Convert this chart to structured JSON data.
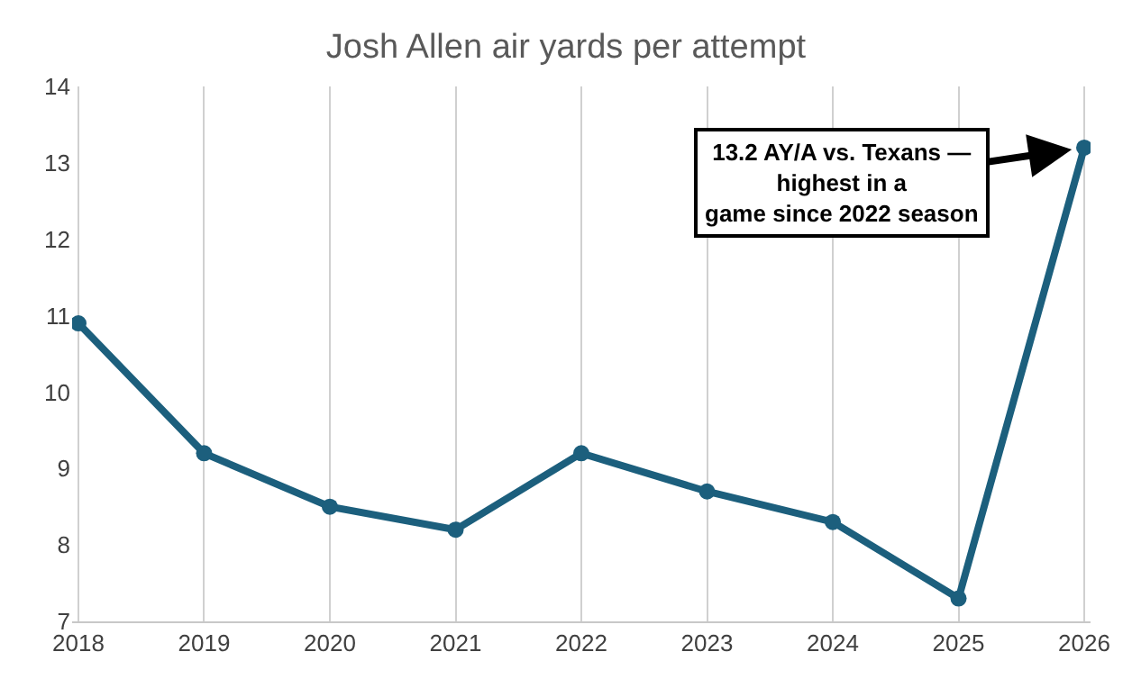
{
  "chart_data": {
    "type": "line",
    "title": "Josh Allen air yards per attempt",
    "categories": [
      "2018",
      "2019",
      "2020",
      "2021",
      "2022",
      "2023",
      "2024",
      "2025",
      "2026"
    ],
    "series": [
      {
        "color": "#1c5f7d",
        "values": [
          10.9,
          9.2,
          8.5,
          8.2,
          9.2,
          8.7,
          8.3,
          7.3,
          13.2
        ]
      }
    ],
    "ylim": [
      7,
      14
    ],
    "yticks": [
      7,
      8,
      9,
      10,
      11,
      12,
      13,
      14
    ],
    "grid": "x",
    "marker": "circle",
    "line_style": "solid",
    "legend": false,
    "annotations": [
      {
        "text": "13.2 AY/A vs. Texans —\nhighest in a\ngame since 2022 season",
        "x": "2026",
        "y": 13.2
      }
    ]
  }
}
